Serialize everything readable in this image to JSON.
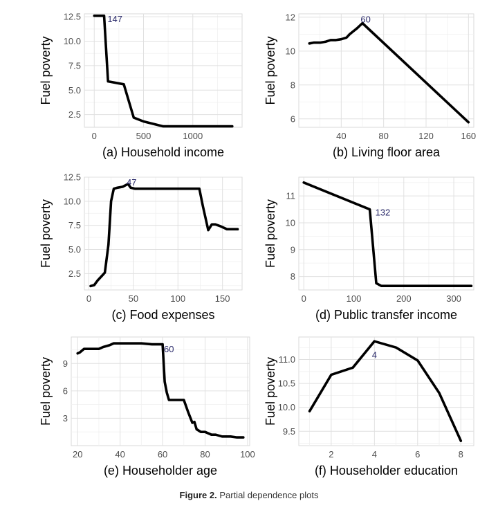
{
  "caption": {
    "label": "Figure 2.",
    "text": "Partial dependence plots"
  },
  "chart_data": [
    {
      "type": "line",
      "xlabel": "(a) Household income",
      "ylabel": "Fuel poverty",
      "xlim": [
        -100,
        1500
      ],
      "ylim": [
        1.2,
        12.8
      ],
      "xticks": [
        0,
        500,
        1000
      ],
      "yticks": [
        2.5,
        5.0,
        7.5,
        10.0,
        12.5
      ],
      "ytick_labels": [
        "2.5",
        "5.0",
        "7.5",
        "10.0",
        "12.5"
      ],
      "annotation": {
        "text": "147",
        "x": 210,
        "y": 12.3
      },
      "grid": true,
      "series": [
        {
          "x": [
            0,
            100,
            140,
            300,
            400,
            500,
            700,
            1000,
            1400
          ],
          "y": [
            12.6,
            12.6,
            5.9,
            5.6,
            2.2,
            1.8,
            1.3,
            1.3,
            1.3
          ]
        }
      ]
    },
    {
      "type": "line",
      "xlabel": "(b) Living floor area",
      "ylabel": "Fuel poverty",
      "xlim": [
        0,
        165
      ],
      "ylim": [
        5.5,
        12.2
      ],
      "xticks": [
        40,
        80,
        120,
        160
      ],
      "yticks": [
        6,
        8,
        10,
        12
      ],
      "ytick_labels": [
        "6",
        "8",
        "10",
        "12"
      ],
      "annotation": {
        "text": "60",
        "x": 63,
        "y": 11.9
      },
      "grid": true,
      "series": [
        {
          "x": [
            10,
            14,
            20,
            25,
            30,
            35,
            40,
            45,
            48,
            52,
            55,
            60,
            160
          ],
          "y": [
            10.45,
            10.5,
            10.5,
            10.55,
            10.65,
            10.65,
            10.7,
            10.8,
            11.0,
            11.2,
            11.35,
            11.65,
            5.8
          ]
        }
      ]
    },
    {
      "type": "line",
      "xlabel": "(c) Food expenses",
      "ylabel": "Fuel poverty",
      "xlim": [
        -5,
        172
      ],
      "ylim": [
        0.8,
        12.5
      ],
      "xticks": [
        0,
        50,
        100,
        150
      ],
      "yticks": [
        2.5,
        5.0,
        7.5,
        10.0,
        12.5
      ],
      "ytick_labels": [
        "2.5",
        "5.0",
        "7.5",
        "10.0",
        "12.5"
      ],
      "annotation": {
        "text": "47",
        "x": 48,
        "y": 12.0
      },
      "grid": true,
      "series": [
        {
          "x": [
            2,
            6,
            10,
            15,
            18,
            22,
            25,
            28,
            32,
            38,
            44,
            47,
            52,
            60,
            80,
            100,
            110,
            124,
            128,
            134,
            138,
            142,
            148,
            155,
            162,
            167
          ],
          "y": [
            1.2,
            1.3,
            1.8,
            2.3,
            2.6,
            5.5,
            10.0,
            11.3,
            11.4,
            11.5,
            11.8,
            11.4,
            11.3,
            11.3,
            11.3,
            11.3,
            11.3,
            11.3,
            9.5,
            7.0,
            7.6,
            7.6,
            7.4,
            7.1,
            7.1,
            7.1
          ]
        }
      ]
    },
    {
      "type": "line",
      "xlabel": "(d) Public transfer income",
      "ylabel": "Fuel poverty",
      "xlim": [
        -10,
        340
      ],
      "ylim": [
        7.5,
        11.7
      ],
      "xticks": [
        0,
        100,
        200,
        300
      ],
      "yticks": [
        8,
        9,
        10,
        11
      ],
      "ytick_labels": [
        "8",
        "9",
        "10",
        "11"
      ],
      "annotation": {
        "text": "132",
        "x": 158,
        "y": 10.4
      },
      "grid": true,
      "series": [
        {
          "x": [
            0,
            132,
            145,
            155,
            170,
            200,
            250,
            300,
            335
          ],
          "y": [
            11.5,
            10.5,
            7.75,
            7.65,
            7.65,
            7.65,
            7.65,
            7.65,
            7.65
          ]
        }
      ]
    },
    {
      "type": "line",
      "xlabel": "(e) Householder age",
      "ylabel": "Fuel poverty",
      "xlim": [
        17,
        101
      ],
      "ylim": [
        0,
        11.9
      ],
      "xticks": [
        20,
        40,
        60,
        80,
        100
      ],
      "yticks": [
        3,
        6,
        9
      ],
      "ytick_labels": [
        "3",
        "6",
        "9"
      ],
      "annotation": {
        "text": "60",
        "x": 63,
        "y": 10.6
      },
      "grid": true,
      "series": [
        {
          "x": [
            20,
            21,
            23,
            30,
            32,
            35,
            37,
            42,
            50,
            55,
            60,
            61,
            62,
            63,
            70,
            72,
            74,
            75,
            76,
            78,
            80,
            83,
            85,
            88,
            92,
            95,
            98
          ],
          "y": [
            10.1,
            10.2,
            10.6,
            10.6,
            10.8,
            11.0,
            11.2,
            11.2,
            11.2,
            11.1,
            11.1,
            7.0,
            5.8,
            5.0,
            5.0,
            3.7,
            2.5,
            2.6,
            1.8,
            1.5,
            1.5,
            1.2,
            1.2,
            1.0,
            1.0,
            0.9,
            0.9
          ]
        }
      ]
    },
    {
      "type": "line",
      "xlabel": "(f) Householder education",
      "ylabel": "Fuel poverty",
      "xlim": [
        0.5,
        8.6
      ],
      "ylim": [
        9.2,
        11.47
      ],
      "xticks": [
        2,
        4,
        6,
        8
      ],
      "yticks": [
        9.5,
        10.0,
        10.5,
        11.0
      ],
      "ytick_labels": [
        "9.5",
        "10.0",
        "10.5",
        "11.0"
      ],
      "annotation": {
        "text": "4",
        "x": 4,
        "y": 11.1
      },
      "grid": true,
      "series": [
        {
          "x": [
            1,
            2,
            3,
            4,
            5,
            6,
            7,
            8
          ],
          "y": [
            9.92,
            10.68,
            10.83,
            11.38,
            11.25,
            10.98,
            10.3,
            9.3
          ]
        }
      ]
    }
  ]
}
